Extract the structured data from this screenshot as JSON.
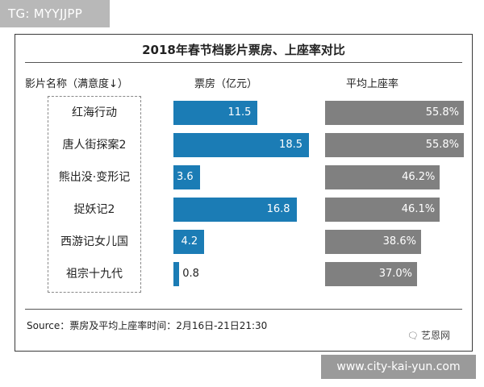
{
  "tag": "TG: MYYJJPP",
  "brand": {
    "icon": "wechat-icon",
    "name": "艺恩网"
  },
  "url": "www.city-kai-yun.com",
  "colors": {
    "box_office": "#1b7cb5",
    "occupancy": "#808080"
  },
  "chart_data": {
    "type": "bar",
    "title": "2018年春节档影片票房、上座率对比",
    "column_headers": {
      "movies": "影片名称（满意度↓）",
      "box_office": "票房（亿元）",
      "occupancy": "平均上座率"
    },
    "categories": [
      "红海行动",
      "唐人街探案2",
      "熊出没·变形记",
      "捉妖记2",
      "西游记女儿国",
      "祖宗十九代"
    ],
    "series": [
      {
        "name": "票房（亿元）",
        "values": [
          11.5,
          18.5,
          3.6,
          16.8,
          4.2,
          0.8
        ],
        "labels": [
          "11.5",
          "18.5",
          "3.6",
          "16.8",
          "4.2",
          "0.8"
        ]
      },
      {
        "name": "平均上座率",
        "values": [
          55.8,
          55.8,
          46.2,
          46.1,
          38.6,
          37.0
        ],
        "labels": [
          "55.8%",
          "55.8%",
          "46.2%",
          "46.1%",
          "38.6%",
          "37.0%"
        ]
      }
    ],
    "source": "Source：票房及平均上座率时间：2月16日-21日21:30"
  }
}
